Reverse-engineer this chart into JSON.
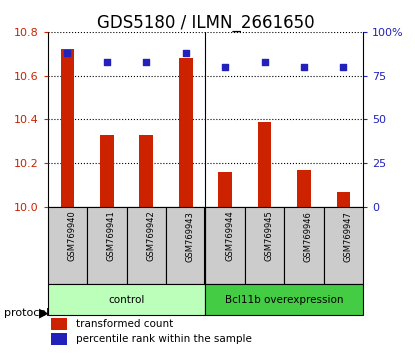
{
  "title": "GDS5180 / ILMN_2661650",
  "samples": [
    "GSM769940",
    "GSM769941",
    "GSM769942",
    "GSM769943",
    "GSM769944",
    "GSM769945",
    "GSM769946",
    "GSM769947"
  ],
  "transformed_counts": [
    10.72,
    10.33,
    10.33,
    10.68,
    10.16,
    10.39,
    10.17,
    10.07
  ],
  "percentile_ranks": [
    88,
    83,
    83,
    88,
    80,
    83,
    80,
    80
  ],
  "ylim_left": [
    10.0,
    10.8
  ],
  "ylim_right": [
    0,
    100
  ],
  "yticks_left": [
    10.0,
    10.2,
    10.4,
    10.6,
    10.8
  ],
  "yticks_right": [
    0,
    25,
    50,
    75,
    100
  ],
  "ytick_labels_right": [
    "0",
    "25",
    "50",
    "75",
    "100%"
  ],
  "bar_color": "#cc2200",
  "dot_color": "#2222bb",
  "group_labels": [
    "control",
    "Bcl11b overexpression"
  ],
  "group_ranges": [
    [
      0,
      3
    ],
    [
      4,
      7
    ]
  ],
  "group_color_light": "#bbffbb",
  "group_color_dark": "#44cc44",
  "protocol_label": "protocol",
  "legend_bar_label": "transformed count",
  "legend_dot_label": "percentile rank within the sample",
  "title_fontsize": 12,
  "axis_color_left": "#cc2200",
  "axis_color_right": "#2222bb",
  "grid_color": "#000000",
  "bg_color": "#ffffff",
  "sample_cell_color": "#cccccc",
  "bar_width": 0.35
}
